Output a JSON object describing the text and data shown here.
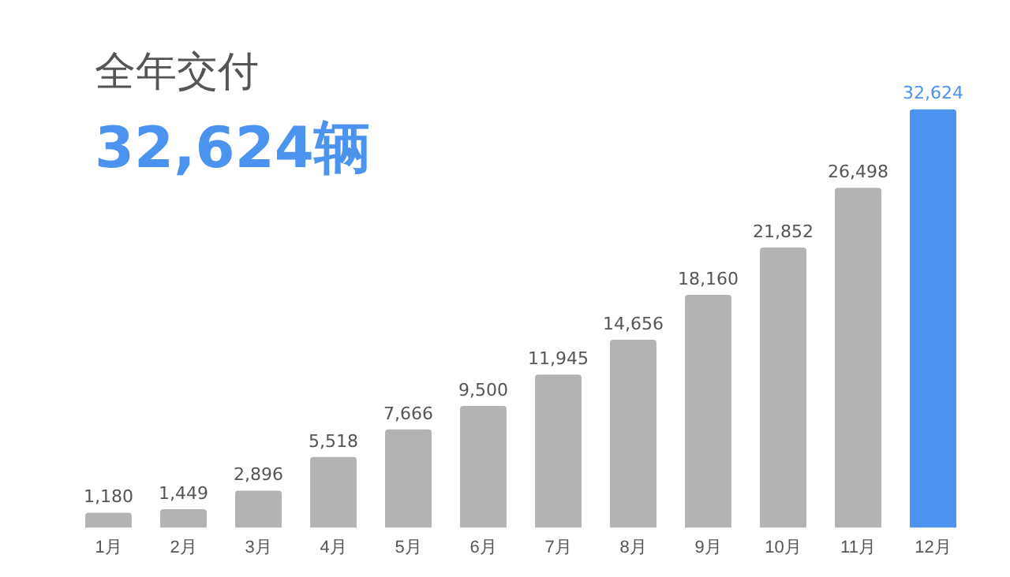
{
  "chart_data": {
    "type": "bar",
    "title": "全年交付",
    "subtitle": "32,624辆",
    "categories": [
      "1月",
      "2月",
      "3月",
      "4月",
      "5月",
      "6月",
      "7月",
      "8月",
      "9月",
      "10月",
      "11月",
      "12月"
    ],
    "values": [
      1180,
      1449,
      2896,
      5518,
      7666,
      9500,
      11945,
      14656,
      18160,
      21852,
      26498,
      32624
    ],
    "colors": [
      "#b3b3b3",
      "#b3b3b3",
      "#b3b3b3",
      "#b3b3b3",
      "#b3b3b3",
      "#b3b3b3",
      "#b3b3b3",
      "#b3b3b3",
      "#b3b3b3",
      "#b3b3b3",
      "#b3b3b3",
      "#4b93ee"
    ],
    "value_labels": [
      "1,180",
      "1,449",
      "2,896",
      "5,518",
      "7,666",
      "9,500",
      "11,945",
      "14,656",
      "18,160",
      "21,852",
      "26,498",
      "32,624"
    ],
    "grid": false,
    "legend": false
  }
}
